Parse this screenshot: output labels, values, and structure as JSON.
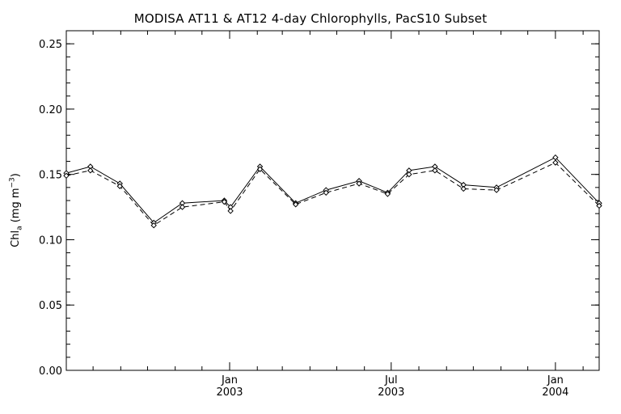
{
  "chart_data": {
    "type": "line",
    "title": "MODISA AT11 & AT12 4-day Chlorophylls, PacS10 Subset",
    "ylabel": {
      "prefix": "Chl",
      "subscript": "a",
      "middle": " (mg m",
      "superscript": "−3",
      "suffix": ")"
    },
    "ylim": [
      0.0,
      0.26
    ],
    "yticks": [
      "0.00",
      "0.05",
      "0.10",
      "0.15",
      "0.20",
      "0.25"
    ],
    "xlim": [
      "2002-07-02",
      "2004-02-19"
    ],
    "xtick_labels": [
      {
        "date": "2003-01-01",
        "lines": [
          "Jan",
          "2003"
        ]
      },
      {
        "date": "2003-07-01",
        "lines": [
          "Jul",
          "2003"
        ]
      },
      {
        "date": "2004-01-01",
        "lines": [
          "Jan",
          "2004"
        ]
      }
    ],
    "x_minor_ticks": [
      "2002-07-01",
      "2002-08-01",
      "2002-09-01",
      "2002-10-01",
      "2002-11-01",
      "2002-12-01",
      "2003-02-01",
      "2003-03-01",
      "2003-04-01",
      "2003-05-01",
      "2003-06-01",
      "2003-08-01",
      "2003-09-01",
      "2003-10-01",
      "2003-11-01",
      "2003-12-01",
      "2004-02-01"
    ],
    "x": [
      "2002-07-02",
      "2002-07-29",
      "2002-08-31",
      "2002-10-08",
      "2002-11-09",
      "2002-12-26",
      "2003-01-02",
      "2003-02-04",
      "2003-03-16",
      "2003-04-19",
      "2003-05-26",
      "2003-06-27",
      "2003-07-21",
      "2003-08-19",
      "2003-09-20",
      "2003-10-27",
      "2004-01-01",
      "2004-02-19"
    ],
    "series": [
      {
        "style": "solid",
        "values": [
          0.151,
          0.156,
          0.143,
          0.113,
          0.128,
          0.13,
          0.125,
          0.156,
          0.128,
          0.138,
          0.145,
          0.136,
          0.153,
          0.156,
          0.142,
          0.14,
          0.163,
          0.128
        ]
      },
      {
        "style": "dashed",
        "values": [
          0.149,
          0.153,
          0.141,
          0.111,
          0.125,
          0.129,
          0.122,
          0.154,
          0.127,
          0.136,
          0.143,
          0.135,
          0.15,
          0.153,
          0.139,
          0.138,
          0.159,
          0.126
        ]
      }
    ],
    "marker": "diamond",
    "grid": false,
    "legend": "none",
    "line_color": "#000000",
    "background": "#ffffff"
  }
}
